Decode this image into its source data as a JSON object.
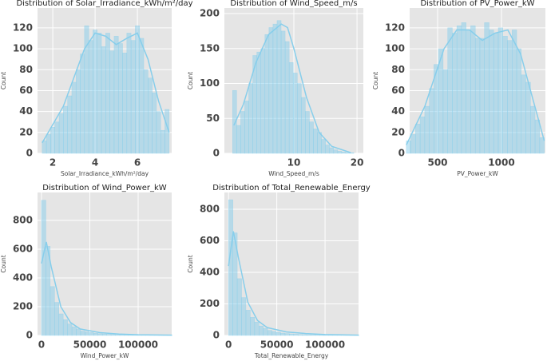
{
  "chart_data": [
    {
      "type": "histogram",
      "title": "Distribution of Solar_Irradiance_kWh/m²/day",
      "x_label": "Solar_Irradiance_kWh/m²/day",
      "y_label": "Count",
      "color": "#87ceeb",
      "grid": true,
      "bins": [
        1.5,
        1.7,
        1.9,
        2.1,
        2.3,
        2.5,
        2.7,
        2.9,
        3.1,
        3.3,
        3.5,
        3.7,
        3.9,
        4.1,
        4.3,
        4.5,
        4.7,
        4.9,
        5.1,
        5.3,
        5.5,
        5.7,
        5.9,
        6.1,
        6.3,
        6.5,
        6.7,
        6.9,
        7.1,
        7.3,
        7.5
      ],
      "counts": [
        12,
        18,
        25,
        30,
        38,
        45,
        55,
        68,
        80,
        95,
        122,
        108,
        118,
        115,
        102,
        115,
        98,
        112,
        105,
        96,
        115,
        108,
        122,
        110,
        80,
        72,
        58,
        40,
        22,
        42
      ],
      "kde": {
        "x": [
          1.5,
          2.5,
          3.5,
          4.0,
          4.5,
          5.0,
          5.5,
          6.0,
          6.5,
          7.0,
          7.5
        ],
        "values": [
          10,
          45,
          100,
          115,
          112,
          104,
          110,
          115,
          90,
          50,
          20
        ]
      },
      "xlim": [
        1.28,
        7.62
      ],
      "xticks": [
        2,
        4,
        6
      ],
      "ylim": [
        0,
        139
      ],
      "yticks": [
        0,
        20,
        40,
        60,
        80,
        100,
        120
      ]
    },
    {
      "type": "histogram",
      "title": "Distribution of Wind_Speed_m/s",
      "x_label": "Wind_Speed_m/s",
      "y_label": "Count",
      "color": "#87ceeb",
      "grid": true,
      "bins": [
        0.3,
        0.94,
        1.58,
        2.22,
        2.86,
        3.5,
        4.14,
        4.78,
        5.42,
        6.06,
        6.7,
        7.34,
        7.98,
        8.62,
        9.26,
        9.9,
        10.54,
        11.18,
        11.82,
        12.46,
        13.1,
        13.74,
        14.38,
        15.02,
        15.66,
        16.3,
        16.94,
        17.58,
        18.22,
        18.86,
        19.5
      ],
      "counts": [
        90,
        40,
        60,
        75,
        100,
        140,
        145,
        150,
        170,
        180,
        185,
        190,
        175,
        160,
        130,
        115,
        100,
        80,
        60,
        45,
        35,
        30,
        20,
        12,
        8,
        5,
        3,
        2,
        1,
        1
      ],
      "kde": {
        "x": [
          0.5,
          2,
          4,
          6,
          8,
          9,
          10,
          12,
          14,
          16,
          19
        ],
        "values": [
          40,
          70,
          130,
          170,
          185,
          180,
          150,
          80,
          30,
          10,
          1
        ]
      },
      "xlim": [
        -1.0,
        21.0
      ],
      "xticks": [
        10,
        20
      ],
      "ylim": [
        0,
        208
      ],
      "yticks": [
        0,
        50,
        100,
        150,
        200
      ]
    },
    {
      "type": "histogram",
      "title": "Distribution of PV_Power_kW",
      "x_label": "PV_Power_kW",
      "y_label": "Count",
      "color": "#87ceeb",
      "grid": true,
      "bins": [
        255,
        291,
        327,
        363,
        399,
        435,
        471,
        507,
        543,
        579,
        615,
        651,
        687,
        723,
        759,
        795,
        831,
        867,
        903,
        939,
        975,
        1011,
        1047,
        1083,
        1119,
        1155,
        1191,
        1227,
        1263,
        1299,
        1335
      ],
      "counts": [
        12,
        18,
        28,
        35,
        45,
        62,
        85,
        100,
        80,
        120,
        115,
        122,
        125,
        118,
        122,
        110,
        110,
        125,
        118,
        115,
        120,
        112,
        108,
        118,
        100,
        75,
        68,
        45,
        32,
        15
      ],
      "kde": {
        "x": [
          255,
          400,
          550,
          650,
          750,
          850,
          950,
          1050,
          1150,
          1250,
          1335
        ],
        "values": [
          8,
          45,
          100,
          118,
          118,
          108,
          115,
          118,
          95,
          50,
          12
        ]
      },
      "xlim": [
        281,
        1344
      ],
      "xticks": [
        500,
        1000
      ],
      "ylim": [
        0,
        139
      ],
      "yticks": [
        0,
        20,
        40,
        60,
        80,
        100,
        120
      ]
    },
    {
      "type": "histogram",
      "title": "Distribution of Wind_Power_kW",
      "x_label": "Wind_Power_kW",
      "y_label": "Count",
      "color": "#87ceeb",
      "grid": true,
      "bins": [
        0,
        4500,
        9000,
        13500,
        18000,
        22500,
        27000,
        31500,
        36000,
        40500,
        45000,
        49500,
        54000,
        58500,
        63000,
        67500,
        72000,
        76500,
        81000,
        85500,
        90000,
        94500,
        99000,
        103500,
        108000,
        112500,
        117000,
        121500,
        126000,
        130500,
        135000
      ],
      "counts": [
        940,
        620,
        340,
        230,
        150,
        110,
        80,
        60,
        45,
        30,
        25,
        20,
        15,
        12,
        10,
        8,
        6,
        5,
        4,
        3,
        3,
        2,
        2,
        2,
        1,
        1,
        1,
        1,
        1,
        1
      ],
      "kde": {
        "x": [
          0,
          5000,
          10000,
          20000,
          30000,
          40000,
          60000,
          80000,
          100000,
          135000
        ],
        "values": [
          500,
          650,
          480,
          200,
          90,
          45,
          20,
          10,
          5,
          2
        ]
      },
      "xlim": [
        -4100,
        134700
      ],
      "xticks": [
        0,
        50000,
        100000
      ],
      "ylim": [
        0,
        994
      ],
      "yticks": [
        0,
        200,
        400,
        600,
        800
      ]
    },
    {
      "type": "histogram",
      "title": "Distribution of Total_Renewable_Energy",
      "x_label": "Total_Renewable_Energy",
      "y_label": "Count",
      "color": "#87ceeb",
      "grid": true,
      "bins": [
        0,
        4500,
        9000,
        13500,
        18000,
        22500,
        27000,
        31500,
        36000,
        40500,
        45000,
        49500,
        54000,
        58500,
        63000,
        67500,
        72000,
        76500,
        81000,
        85500,
        90000,
        94500,
        99000,
        103500,
        108000,
        112500,
        117000,
        121500,
        126000,
        130500,
        135000
      ],
      "counts": [
        860,
        650,
        360,
        240,
        160,
        115,
        85,
        60,
        45,
        32,
        25,
        20,
        15,
        12,
        10,
        8,
        6,
        5,
        4,
        3,
        3,
        2,
        2,
        2,
        1,
        1,
        1,
        1,
        1,
        1
      ],
      "kde": {
        "x": [
          0,
          5000,
          10000,
          20000,
          30000,
          40000,
          60000,
          80000,
          100000,
          135000
        ],
        "values": [
          440,
          660,
          500,
          210,
          95,
          50,
          22,
          12,
          6,
          2
        ]
      },
      "xlim": [
        -4300,
        134700
      ],
      "xticks": [
        0,
        50000,
        100000
      ],
      "ylim": [
        0,
        906
      ],
      "yticks": [
        0,
        200,
        400,
        600,
        800
      ]
    }
  ]
}
